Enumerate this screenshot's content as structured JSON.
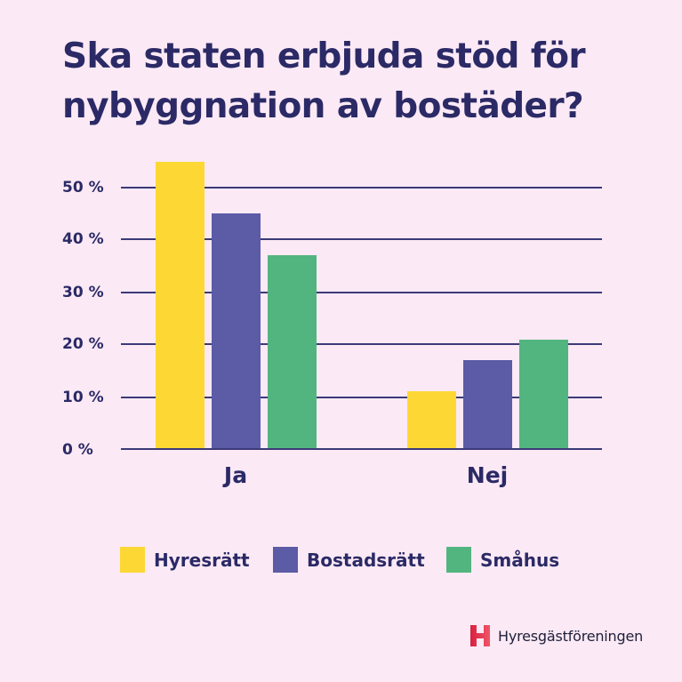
{
  "title": "Ska staten erbjuda stöd för nybyggnation av bostäder?",
  "colors": {
    "background": "#fbe9f5",
    "text": "#2b2a66",
    "grid": "#3b3a78",
    "Hyresrätt": "#fdd835",
    "Bostadsrätt": "#5b5ba6",
    "Småhus": "#52b57f",
    "logo": "#e8334a"
  },
  "logo": {
    "icon": "h-logo-icon",
    "text": "Hyresgästföreningen"
  },
  "chart_data": {
    "type": "bar",
    "title": "Ska staten erbjuda stöd för nybyggnation av bostäder?",
    "xlabel": "",
    "ylabel": "",
    "categories": [
      "Ja",
      "Nej"
    ],
    "series": [
      {
        "name": "Hyresrätt",
        "color": "#fdd835",
        "values": [
          55,
          11
        ]
      },
      {
        "name": "Bostadsrätt",
        "color": "#5b5ba6",
        "values": [
          45,
          17
        ]
      },
      {
        "name": "Småhus",
        "color": "#52b57f",
        "values": [
          37,
          21
        ]
      }
    ],
    "yticks": [
      "0 %",
      "10 %",
      "20 %",
      "30 %",
      "40 %",
      "50 %"
    ],
    "ylim": [
      0,
      55
    ],
    "grid": true,
    "legend_position": "bottom"
  },
  "legend": [
    {
      "label": "Hyresrätt"
    },
    {
      "label": "Bostadsrätt"
    },
    {
      "label": "Småhus"
    }
  ]
}
